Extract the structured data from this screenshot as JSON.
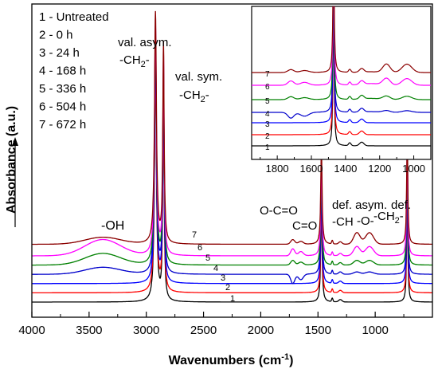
{
  "chart_data": [
    {
      "type": "line",
      "title": "",
      "xlabel": "Wavenumbers (cm",
      "xlabel_sup": "-1",
      "xlabel_close": ")",
      "ylabel": "Absorbance (a.u.)",
      "xlim": [
        4000,
        500
      ],
      "x_reversed": true,
      "xticks": [
        4000,
        3500,
        3000,
        2500,
        2000,
        1500,
        1000
      ],
      "y_tick_labels": false,
      "legend_entries": [
        "1 - Untreated",
        "2 - 0 h",
        "3 - 24 h",
        "4 - 168 h",
        "5 - 336 h",
        "6 - 504 h",
        "7 - 672 h"
      ],
      "legend_position": "top-left",
      "annotations": [
        {
          "text": "val. asym.",
          "wavenumber": 2920
        },
        {
          "text": "-CH",
          "sub": "2",
          "tail": "-",
          "wavenumber": 2920
        },
        {
          "text": "val. sym.",
          "wavenumber": 2850
        },
        {
          "text": "-CH",
          "sub": "2",
          "tail": "-",
          "wavenumber": 2850
        },
        {
          "text": "-OH",
          "wavenumber": 3350
        },
        {
          "text": "O-C=O",
          "wavenumber": 1720
        },
        {
          "text": "C=O",
          "wavenumber": 1650
        },
        {
          "text": "def. asym.",
          "wavenumber": 1462
        },
        {
          "text": "-CH",
          "wavenumber": 1462
        },
        {
          "text": "def.",
          "wavenumber": 1000
        },
        {
          "text": "-O-",
          "wavenumber": 1120
        },
        {
          "text": "-CH",
          "sub": "2",
          "tail": "-",
          "wavenumber": 1000
        }
      ],
      "series": [
        {
          "name": "1",
          "color": "#000000",
          "baseline": 0.0,
          "oh_band": 0.0,
          "carbonyl_band": 0.0,
          "ester_band": 0.0
        },
        {
          "name": "2",
          "color": "#ff0000",
          "baseline": 0.04,
          "oh_band": 0.0,
          "carbonyl_band": 0.0,
          "ester_band": 0.0
        },
        {
          "name": "3",
          "color": "#0000ff",
          "baseline": 0.08,
          "oh_band": 0.0,
          "carbonyl_band": 0.0,
          "ester_band": 0.0
        },
        {
          "name": "4",
          "color": "#0000cc",
          "baseline": 0.12,
          "oh_band": 0.03,
          "carbonyl_band": -0.04,
          "ester_band": 0.01
        },
        {
          "name": "5",
          "color": "#008000",
          "baseline": 0.16,
          "oh_band": 0.05,
          "carbonyl_band": 0.02,
          "ester_band": 0.02
        },
        {
          "name": "6",
          "color": "#ff00ff",
          "baseline": 0.2,
          "oh_band": 0.07,
          "carbonyl_band": 0.03,
          "ester_band": 0.04
        },
        {
          "name": "7",
          "color": "#8b0000",
          "baseline": 0.25,
          "oh_band": 0.03,
          "carbonyl_band": 0.02,
          "ester_band": 0.05
        }
      ],
      "peaks": [
        {
          "wavenumber": 2920,
          "height": 1.0
        },
        {
          "wavenumber": 2850,
          "height": 0.86
        },
        {
          "wavenumber": 1470,
          "height": 0.42
        },
        {
          "wavenumber": 720,
          "height": 0.48
        }
      ]
    },
    {
      "type": "line",
      "title": "",
      "xlim": [
        1950,
        900
      ],
      "x_reversed": true,
      "xticks": [
        1800,
        1600,
        1400,
        1200,
        1000
      ],
      "y_tick_labels": false,
      "series_labels": [
        "1",
        "2",
        "3",
        "4",
        "5",
        "6",
        "7"
      ]
    }
  ]
}
